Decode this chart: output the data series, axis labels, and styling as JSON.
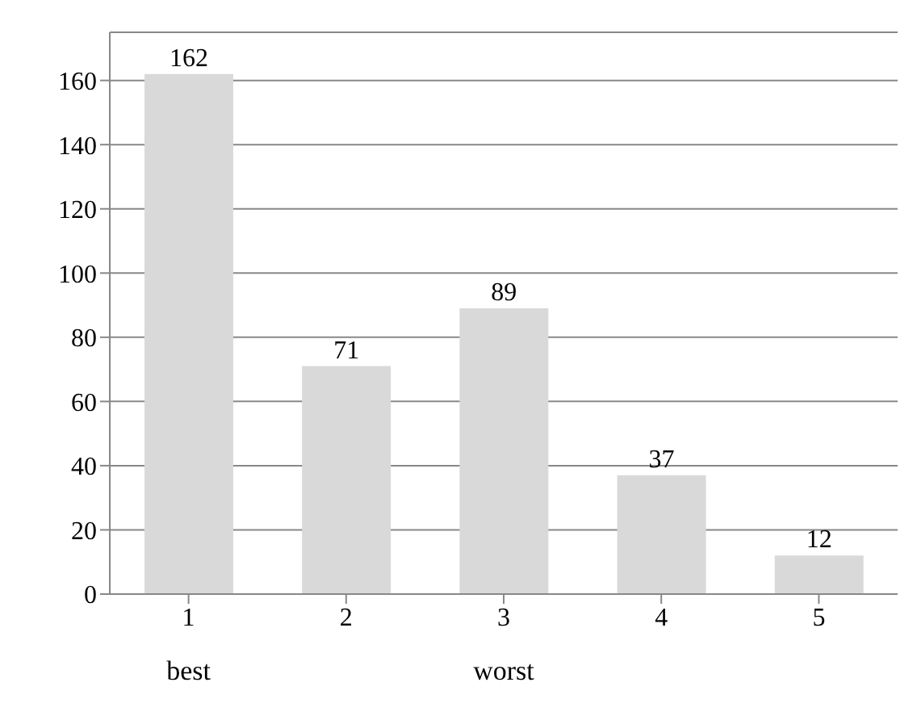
{
  "chart_data": {
    "type": "bar",
    "categories": [
      "1",
      "2",
      "3",
      "4",
      "5"
    ],
    "values": [
      162,
      71,
      89,
      37,
      12
    ],
    "color": "#d9d9d9",
    "ylim": [
      0,
      175
    ],
    "yticks": [
      0,
      20,
      40,
      60,
      80,
      100,
      120,
      140,
      160
    ],
    "grid": "y",
    "data_labels": true,
    "annotations": [
      "best",
      "worst"
    ]
  }
}
